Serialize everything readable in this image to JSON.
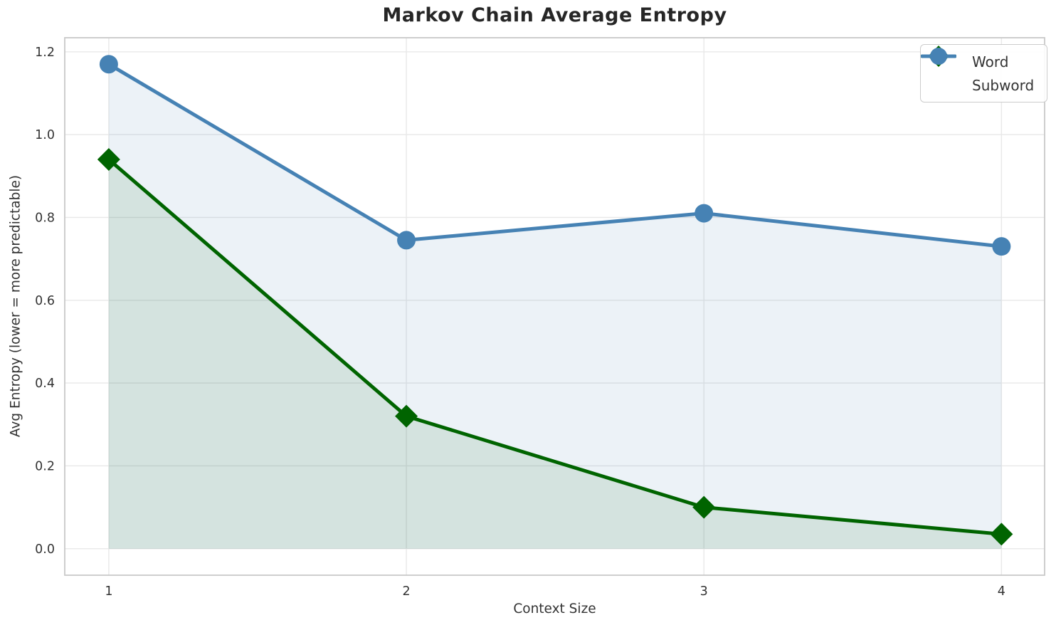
{
  "chart_data": {
    "type": "line",
    "title": "Markov Chain Average Entropy",
    "xlabel": "Context Size",
    "ylabel": "Avg Entropy (lower = more predictable)",
    "x": [
      1,
      2,
      3,
      4
    ],
    "series": [
      {
        "name": "Word",
        "color": "#006400",
        "marker": "diamond",
        "values": [
          0.94,
          0.32,
          0.1,
          0.035
        ],
        "fill_to_zero": true,
        "fill_alpha": 0.1
      },
      {
        "name": "Subword",
        "color": "#4682b4",
        "marker": "circle",
        "values": [
          1.17,
          0.745,
          0.81,
          0.73
        ],
        "fill_to_zero": true,
        "fill_alpha": 0.1
      }
    ],
    "xticks": {
      "values": [
        1,
        2,
        3,
        4
      ],
      "labels": [
        "1",
        "2",
        "3",
        "4"
      ]
    },
    "yticks": {
      "values": [
        0.0,
        0.2,
        0.4,
        0.6,
        0.8,
        1.0,
        1.2
      ],
      "labels": [
        "0.0",
        "0.2",
        "0.4",
        "0.6",
        "0.8",
        "1.0",
        "1.2"
      ]
    },
    "xlim": [
      0.852,
      4.145
    ],
    "ylim": [
      -0.064,
      1.234
    ],
    "grid": true,
    "legend_position": "upper right",
    "colors": {
      "grid": "#e8e8e8",
      "spine": "#c9c9c9",
      "tick_text": "#333333",
      "title_text": "#262626"
    }
  }
}
